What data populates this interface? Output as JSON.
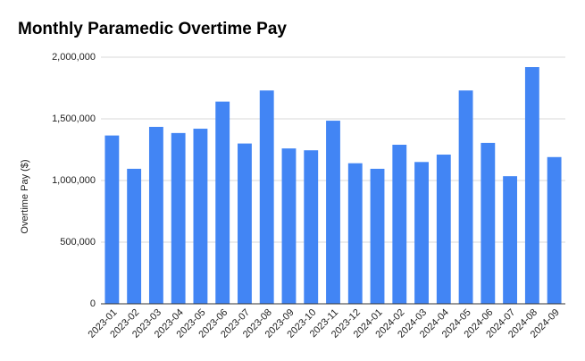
{
  "chart_data": {
    "type": "bar",
    "title": "Monthly Paramedic Overtime Pay",
    "y_label": "Overtime Pay ($)",
    "categories": [
      "2023-01",
      "2023-02",
      "2023-03",
      "2023-04",
      "2023-05",
      "2023-06",
      "2023-07",
      "2023-08",
      "2023-09",
      "2023-10",
      "2023-11",
      "2023-12",
      "2024-01",
      "2024-02",
      "2024-03",
      "2024-04",
      "2024-05",
      "2024-06",
      "2024-07",
      "2024-08",
      "2024-09"
    ],
    "values": [
      1365000,
      1095000,
      1435000,
      1385000,
      1420000,
      1640000,
      1300000,
      1730000,
      1260000,
      1245000,
      1485000,
      1140000,
      1095000,
      1290000,
      1150000,
      1210000,
      1730000,
      1305000,
      1035000,
      1920000,
      1190000
    ],
    "color": "#4285f4",
    "ylim": [
      0,
      2000000
    ],
    "yticks": [
      0,
      {
        "value": 500000,
        "label": "500,000"
      },
      {
        "value": 1000000,
        "label": "1,000,000"
      },
      {
        "value": 1500000,
        "label": "1,500,000"
      },
      {
        "value": 2000000,
        "label": "2,000,000"
      }
    ],
    "grid": true
  }
}
